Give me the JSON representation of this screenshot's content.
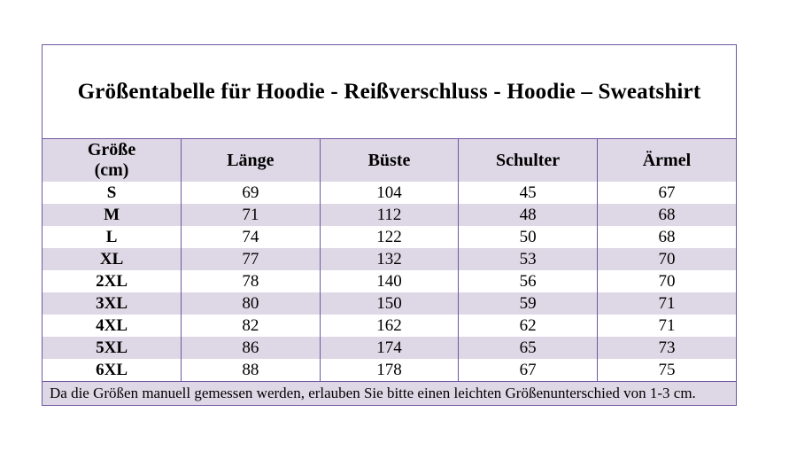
{
  "title": "Größentabelle für Hoodie - Reißverschluss - Hoodie – Sweatshirt",
  "colors": {
    "grid_border": "#70569E",
    "row_highlight": "#DED8E6",
    "background": "#FFFFFF",
    "text": "#000000"
  },
  "table": {
    "header": {
      "size_line1": "Größe",
      "size_line2": "(cm)",
      "laenge": "Länge",
      "bueste": "Büste",
      "schulter": "Schulter",
      "aermel": "Ärmel"
    },
    "rows": [
      {
        "size": "S",
        "laenge": "69",
        "bueste": "104",
        "schulter": "45",
        "aermel": "67"
      },
      {
        "size": "M",
        "laenge": "71",
        "bueste": "112",
        "schulter": "48",
        "aermel": "68"
      },
      {
        "size": "L",
        "laenge": "74",
        "bueste": "122",
        "schulter": "50",
        "aermel": "68"
      },
      {
        "size": "XL",
        "laenge": "77",
        "bueste": "132",
        "schulter": "53",
        "aermel": "70"
      },
      {
        "size": "2XL",
        "laenge": "78",
        "bueste": "140",
        "schulter": "56",
        "aermel": "70"
      },
      {
        "size": "3XL",
        "laenge": "80",
        "bueste": "150",
        "schulter": "59",
        "aermel": "71"
      },
      {
        "size": "4XL",
        "laenge": "82",
        "bueste": "162",
        "schulter": "62",
        "aermel": "71"
      },
      {
        "size": "5XL",
        "laenge": "86",
        "bueste": "174",
        "schulter": "65",
        "aermel": "73"
      },
      {
        "size": "6XL",
        "laenge": "88",
        "bueste": "178",
        "schulter": "67",
        "aermel": "75"
      }
    ]
  },
  "note": "Da die Größen manuell gemessen werden, erlauben Sie bitte einen leichten Größenunterschied von 1-3 cm."
}
